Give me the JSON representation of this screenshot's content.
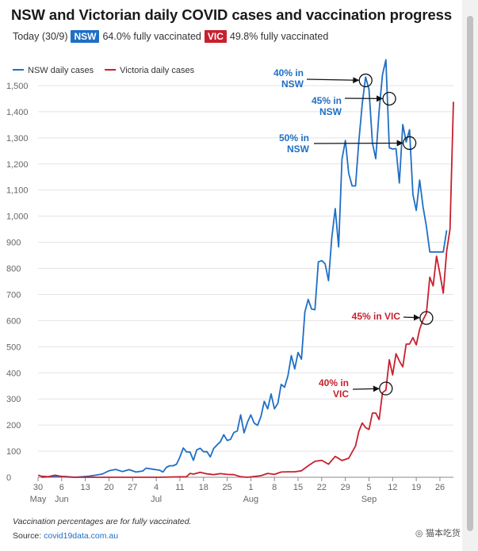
{
  "header": {
    "title": "NSW and Victorian daily COVID cases and vaccination progress",
    "today_label": "Today (30/9)",
    "nsw_badge": "NSW",
    "nsw_text": "64.0% fully vaccinated",
    "vic_badge": "VIC",
    "vic_text": "49.8% fully vaccinated"
  },
  "footer": {
    "footnote": "Vaccination percentages are for fully vaccinated.",
    "source_label": "Source: ",
    "source_link": "covid19data.com.au",
    "watermark": "猫本吃货"
  },
  "colors": {
    "nsw": "#1f6fc5",
    "vic": "#c8202e",
    "grid": "#e3e3e3",
    "axis": "#888888"
  },
  "chart_data": {
    "type": "line",
    "title": "NSW and Victorian daily COVID cases and vaccination progress",
    "xlabel": "",
    "ylabel": "",
    "ylim": [
      0,
      1500
    ],
    "yticks": [
      0,
      100,
      200,
      300,
      400,
      500,
      600,
      700,
      800,
      900,
      1000,
      1100,
      1200,
      1300,
      1400,
      1500
    ],
    "ytick_labels": [
      "0",
      "100",
      "200",
      "300",
      "400",
      "500",
      "600",
      "700",
      "800",
      "900",
      "1,000",
      "1,100",
      "1,200",
      "1,300",
      "1,400",
      "1,500"
    ],
    "grid": true,
    "legend": "top-left",
    "x_start": "2021-05-30",
    "x_end": "2021-09-30",
    "xticks": [
      {
        "date": "2021-05-30",
        "label": "30",
        "month": "May"
      },
      {
        "date": "2021-06-06",
        "label": "6",
        "month": "Jun"
      },
      {
        "date": "2021-06-13",
        "label": "13",
        "month": ""
      },
      {
        "date": "2021-06-20",
        "label": "20",
        "month": ""
      },
      {
        "date": "2021-06-27",
        "label": "27",
        "month": ""
      },
      {
        "date": "2021-07-04",
        "label": "4",
        "month": "Jul"
      },
      {
        "date": "2021-07-11",
        "label": "11",
        "month": ""
      },
      {
        "date": "2021-07-18",
        "label": "18",
        "month": ""
      },
      {
        "date": "2021-07-25",
        "label": "25",
        "month": ""
      },
      {
        "date": "2021-08-01",
        "label": "1",
        "month": "Aug"
      },
      {
        "date": "2021-08-08",
        "label": "8",
        "month": ""
      },
      {
        "date": "2021-08-15",
        "label": "15",
        "month": ""
      },
      {
        "date": "2021-08-22",
        "label": "22",
        "month": ""
      },
      {
        "date": "2021-08-29",
        "label": "29",
        "month": ""
      },
      {
        "date": "2021-09-05",
        "label": "5",
        "month": "Sep"
      },
      {
        "date": "2021-09-12",
        "label": "12",
        "month": ""
      },
      {
        "date": "2021-09-19",
        "label": "19",
        "month": ""
      },
      {
        "date": "2021-09-26",
        "label": "26",
        "month": ""
      }
    ],
    "series": [
      {
        "name": "NSW daily cases",
        "color": "#1f6fc5",
        "points": [
          [
            "2021-05-31",
            0
          ],
          [
            "2021-06-03",
            2
          ],
          [
            "2021-06-07",
            3
          ],
          [
            "2021-06-10",
            0
          ],
          [
            "2021-06-14",
            4
          ],
          [
            "2021-06-16",
            8
          ],
          [
            "2021-06-18",
            12
          ],
          [
            "2021-06-20",
            25
          ],
          [
            "2021-06-22",
            30
          ],
          [
            "2021-06-24",
            22
          ],
          [
            "2021-06-26",
            29
          ],
          [
            "2021-06-28",
            20
          ],
          [
            "2021-06-30",
            24
          ],
          [
            "2021-07-01",
            35
          ],
          [
            "2021-07-03",
            31
          ],
          [
            "2021-07-05",
            27
          ],
          [
            "2021-07-06",
            20
          ],
          [
            "2021-07-07",
            38
          ],
          [
            "2021-07-08",
            44
          ],
          [
            "2021-07-09",
            44
          ],
          [
            "2021-07-10",
            50
          ],
          [
            "2021-07-11",
            77
          ],
          [
            "2021-07-12",
            112
          ],
          [
            "2021-07-13",
            97
          ],
          [
            "2021-07-14",
            97
          ],
          [
            "2021-07-15",
            65
          ],
          [
            "2021-07-16",
            105
          ],
          [
            "2021-07-17",
            111
          ],
          [
            "2021-07-18",
            98
          ],
          [
            "2021-07-19",
            98
          ],
          [
            "2021-07-20",
            78
          ],
          [
            "2021-07-21",
            110
          ],
          [
            "2021-07-22",
            124
          ],
          [
            "2021-07-23",
            136
          ],
          [
            "2021-07-24",
            163
          ],
          [
            "2021-07-25",
            141
          ],
          [
            "2021-07-26",
            145
          ],
          [
            "2021-07-27",
            172
          ],
          [
            "2021-07-28",
            177
          ],
          [
            "2021-07-29",
            239
          ],
          [
            "2021-07-30",
            170
          ],
          [
            "2021-07-31",
            210
          ],
          [
            "2021-08-01",
            239
          ],
          [
            "2021-08-02",
            207
          ],
          [
            "2021-08-03",
            199
          ],
          [
            "2021-08-04",
            233
          ],
          [
            "2021-08-05",
            291
          ],
          [
            "2021-08-06",
            262
          ],
          [
            "2021-08-07",
            319
          ],
          [
            "2021-08-08",
            262
          ],
          [
            "2021-08-09",
            283
          ],
          [
            "2021-08-10",
            356
          ],
          [
            "2021-08-11",
            345
          ],
          [
            "2021-08-12",
            390
          ],
          [
            "2021-08-13",
            466
          ],
          [
            "2021-08-14",
            415
          ],
          [
            "2021-08-15",
            478
          ],
          [
            "2021-08-16",
            452
          ],
          [
            "2021-08-17",
            633
          ],
          [
            "2021-08-18",
            681
          ],
          [
            "2021-08-19",
            644
          ],
          [
            "2021-08-20",
            642
          ],
          [
            "2021-08-21",
            825
          ],
          [
            "2021-08-22",
            830
          ],
          [
            "2021-08-23",
            818
          ],
          [
            "2021-08-24",
            753
          ],
          [
            "2021-08-25",
            919
          ],
          [
            "2021-08-26",
            1029
          ],
          [
            "2021-08-27",
            882
          ],
          [
            "2021-08-28",
            1218
          ],
          [
            "2021-08-29",
            1290
          ],
          [
            "2021-08-30",
            1164
          ],
          [
            "2021-08-31",
            1116
          ],
          [
            "2021-09-01",
            1116
          ],
          [
            "2021-09-02",
            1288
          ],
          [
            "2021-09-03",
            1431
          ],
          [
            "2021-09-04",
            1533
          ],
          [
            "2021-09-05",
            1485
          ],
          [
            "2021-09-06",
            1281
          ],
          [
            "2021-09-07",
            1220
          ],
          [
            "2021-09-08",
            1405
          ],
          [
            "2021-09-09",
            1542
          ],
          [
            "2021-09-10",
            1599
          ],
          [
            "2021-09-11",
            1262
          ],
          [
            "2021-09-12",
            1257
          ],
          [
            "2021-09-13",
            1259
          ],
          [
            "2021-09-14",
            1127
          ],
          [
            "2021-09-15",
            1351
          ],
          [
            "2021-09-16",
            1284
          ],
          [
            "2021-09-17",
            1331
          ],
          [
            "2021-09-18",
            1083
          ],
          [
            "2021-09-19",
            1022
          ],
          [
            "2021-09-20",
            1138
          ],
          [
            "2021-09-21",
            1035
          ],
          [
            "2021-09-22",
            961
          ],
          [
            "2021-09-23",
            863
          ],
          [
            "2021-09-24",
            863
          ],
          [
            "2021-09-25",
            863
          ],
          [
            "2021-09-26",
            863
          ],
          [
            "2021-09-27",
            863
          ],
          [
            "2021-09-28",
            946
          ]
        ]
      },
      {
        "name": "Victoria daily cases",
        "color": "#c8202e",
        "points": [
          [
            "2021-05-30",
            8
          ],
          [
            "2021-05-31",
            4
          ],
          [
            "2021-06-02",
            2
          ],
          [
            "2021-06-04",
            8
          ],
          [
            "2021-06-06",
            3
          ],
          [
            "2021-06-08",
            1
          ],
          [
            "2021-06-10",
            0
          ],
          [
            "2021-06-14",
            0
          ],
          [
            "2021-06-20",
            0
          ],
          [
            "2021-06-27",
            0
          ],
          [
            "2021-07-04",
            0
          ],
          [
            "2021-07-13",
            2
          ],
          [
            "2021-07-14",
            15
          ],
          [
            "2021-07-15",
            12
          ],
          [
            "2021-07-17",
            19
          ],
          [
            "2021-07-19",
            13
          ],
          [
            "2021-07-21",
            10
          ],
          [
            "2021-07-23",
            14
          ],
          [
            "2021-07-25",
            11
          ],
          [
            "2021-07-27",
            10
          ],
          [
            "2021-07-29",
            2
          ],
          [
            "2021-07-31",
            0
          ],
          [
            "2021-08-04",
            6
          ],
          [
            "2021-08-06",
            15
          ],
          [
            "2021-08-08",
            11
          ],
          [
            "2021-08-10",
            20
          ],
          [
            "2021-08-12",
            21
          ],
          [
            "2021-08-14",
            21
          ],
          [
            "2021-08-16",
            25
          ],
          [
            "2021-08-18",
            44
          ],
          [
            "2021-08-20",
            61
          ],
          [
            "2021-08-22",
            65
          ],
          [
            "2021-08-24",
            50
          ],
          [
            "2021-08-26",
            80
          ],
          [
            "2021-08-28",
            64
          ],
          [
            "2021-08-30",
            73
          ],
          [
            "2021-09-01",
            120
          ],
          [
            "2021-09-02",
            176
          ],
          [
            "2021-09-03",
            208
          ],
          [
            "2021-09-04",
            190
          ],
          [
            "2021-09-05",
            183
          ],
          [
            "2021-09-06",
            246
          ],
          [
            "2021-09-07",
            246
          ],
          [
            "2021-09-08",
            221
          ],
          [
            "2021-09-09",
            324
          ],
          [
            "2021-09-10",
            334
          ],
          [
            "2021-09-11",
            450
          ],
          [
            "2021-09-12",
            392
          ],
          [
            "2021-09-13",
            473
          ],
          [
            "2021-09-14",
            445
          ],
          [
            "2021-09-15",
            423
          ],
          [
            "2021-09-16",
            510
          ],
          [
            "2021-09-17",
            510
          ],
          [
            "2021-09-18",
            535
          ],
          [
            "2021-09-19",
            507
          ],
          [
            "2021-09-20",
            567
          ],
          [
            "2021-09-21",
            603
          ],
          [
            "2021-09-22",
            628
          ],
          [
            "2021-09-23",
            766
          ],
          [
            "2021-09-24",
            733
          ],
          [
            "2021-09-25",
            847
          ],
          [
            "2021-09-26",
            779
          ],
          [
            "2021-09-27",
            705
          ],
          [
            "2021-09-28",
            867
          ],
          [
            "2021-09-29",
            950
          ],
          [
            "2021-09-30",
            1438
          ]
        ]
      }
    ],
    "annotations": [
      {
        "lines": [
          "40% in",
          "NSW"
        ],
        "color": "#1f6fc5",
        "target": [
          "2021-09-04",
          1520
        ]
      },
      {
        "lines": [
          "45% in",
          "NSW"
        ],
        "color": "#1f6fc5",
        "target": [
          "2021-09-11",
          1450
        ]
      },
      {
        "lines": [
          "50% in",
          "NSW"
        ],
        "color": "#1f6fc5",
        "target": [
          "2021-09-17",
          1280
        ]
      },
      {
        "lines": [
          "45% in VIC"
        ],
        "color": "#c8202e",
        "target": [
          "2021-09-22",
          610
        ]
      },
      {
        "lines": [
          "40% in",
          "VIC"
        ],
        "color": "#c8202e",
        "target": [
          "2021-09-10",
          340
        ]
      }
    ]
  }
}
